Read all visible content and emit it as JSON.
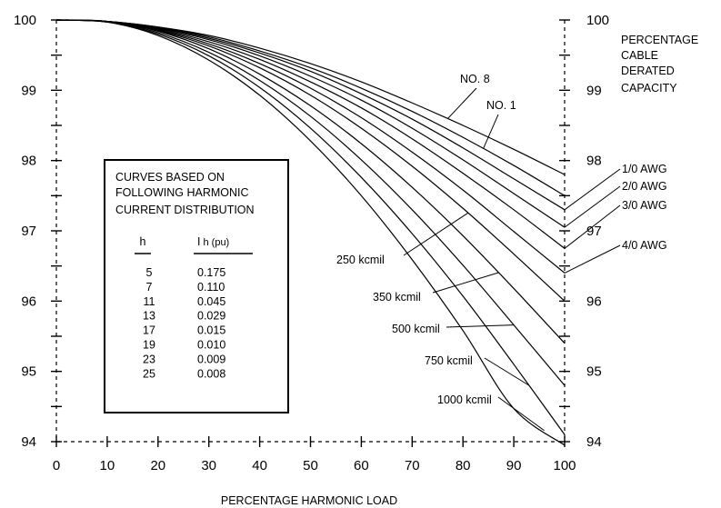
{
  "chart_data": {
    "type": "line",
    "title": "",
    "xlabel": "PERCENTAGE HARMONIC LOAD",
    "ylabel_right": [
      "PERCENTAGE",
      "CABLE",
      "DERATED",
      "CAPACITY"
    ],
    "xlim": [
      0,
      100
    ],
    "ylim": [
      94,
      100
    ],
    "x_ticks": [
      "0",
      "10",
      "20",
      "30",
      "40",
      "50",
      "60",
      "70",
      "80",
      "90",
      "100"
    ],
    "y_ticks": [
      "94",
      "95",
      "96",
      "97",
      "98",
      "99",
      "100"
    ],
    "x": [
      0,
      10,
      20,
      30,
      40,
      50,
      60,
      70,
      80,
      90,
      100
    ],
    "series": [
      {
        "name": "NO. 8",
        "values": [
          100,
          99.98,
          99.9,
          99.78,
          99.6,
          99.38,
          99.12,
          98.82,
          98.5,
          98.16,
          97.8
        ]
      },
      {
        "name": "NO. 1",
        "values": [
          100,
          99.98,
          99.9,
          99.76,
          99.56,
          99.32,
          99.03,
          98.7,
          98.33,
          97.93,
          97.5
        ]
      },
      {
        "name": "1/0 AWG",
        "values": [
          100,
          99.98,
          99.89,
          99.74,
          99.53,
          99.27,
          98.95,
          98.59,
          98.18,
          97.74,
          97.3
        ]
      },
      {
        "name": "2/0 AWG",
        "values": [
          100,
          99.98,
          99.88,
          99.72,
          99.49,
          99.2,
          98.86,
          98.46,
          98.01,
          97.53,
          97.05
        ]
      },
      {
        "name": "3/0 AWG",
        "values": [
          100,
          99.98,
          99.87,
          99.69,
          99.44,
          99.12,
          98.75,
          98.31,
          97.82,
          97.3,
          96.75
        ]
      },
      {
        "name": "4/0 AWG",
        "values": [
          100,
          99.98,
          99.86,
          99.66,
          99.38,
          99.03,
          98.61,
          98.12,
          97.58,
          96.99,
          96.4
        ]
      },
      {
        "name": "250 kcmil",
        "values": [
          100,
          99.98,
          99.85,
          99.63,
          99.32,
          98.93,
          98.46,
          97.92,
          97.32,
          96.67,
          96.0
        ]
      },
      {
        "name": "350 kcmil",
        "values": [
          100,
          99.98,
          99.84,
          99.59,
          99.23,
          98.78,
          98.24,
          97.62,
          96.93,
          96.18,
          95.4
        ]
      },
      {
        "name": "500 kcmil",
        "values": [
          100,
          99.98,
          99.82,
          99.54,
          99.14,
          98.63,
          98.01,
          97.3,
          96.51,
          95.66,
          94.8
        ]
      },
      {
        "name": "750 kcmil",
        "values": [
          100,
          99.97,
          99.8,
          99.49,
          99.04,
          98.46,
          97.76,
          96.96,
          96.07,
          95.1,
          94.1
        ]
      },
      {
        "name": "1000 kcmil",
        "values": [
          100,
          99.97,
          99.78,
          99.43,
          98.93,
          98.28,
          97.5,
          96.59,
          95.58,
          94.47,
          93.95
        ]
      }
    ],
    "grid": false,
    "legend_box": {
      "title_lines": [
        "CURVES BASED ON",
        "FOLLOWING HARMONIC",
        "CURRENT DISTRIBUTION"
      ],
      "col_h": "h",
      "col_ih_main": "I",
      "col_ih_sub": "h (pu)",
      "rows": [
        {
          "h": "5",
          "ih": "0.175"
        },
        {
          "h": "7",
          "ih": "0.110"
        },
        {
          "h": "11",
          "ih": "0.045"
        },
        {
          "h": "13",
          "ih": "0.029"
        },
        {
          "h": "17",
          "ih": "0.015"
        },
        {
          "h": "19",
          "ih": "0.010"
        },
        {
          "h": "23",
          "ih": "0.009"
        },
        {
          "h": "25",
          "ih": "0.008"
        }
      ]
    }
  }
}
